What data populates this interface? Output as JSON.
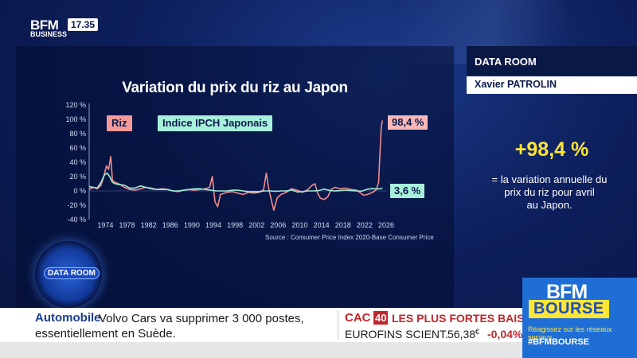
{
  "header": {
    "brand": "BFM",
    "sub_brand": "BUSINESS",
    "time": "17.35"
  },
  "chart_data": {
    "type": "line",
    "title": "Variation du prix du riz au Japon",
    "xlabel": "",
    "ylabel": "",
    "xlim": [
      1971,
      2026
    ],
    "ylim": [
      -40,
      120
    ],
    "x_ticks": [
      1974,
      1978,
      1982,
      1986,
      1990,
      1994,
      1998,
      2002,
      2006,
      2010,
      2014,
      2018,
      2022,
      2026
    ],
    "y_ticks": [
      -40,
      -20,
      0,
      20,
      40,
      60,
      80,
      100,
      120
    ],
    "y_tick_labels": [
      "-40 %",
      "-20 %",
      "0 %",
      "20 %",
      "40 %",
      "60 %",
      "80 %",
      "100 %",
      "120 %"
    ],
    "grid": false,
    "legend": [
      "Riz",
      "Indice IPCH Japonais"
    ],
    "series": [
      {
        "name": "Riz",
        "color": "#f08c8c",
        "end_label": "98,4 %",
        "points": [
          [
            1971,
            2
          ],
          [
            1971.8,
            5
          ],
          [
            1972.5,
            3
          ],
          [
            1973.2,
            8
          ],
          [
            1973.7,
            20
          ],
          [
            1974.2,
            35
          ],
          [
            1974.6,
            30
          ],
          [
            1975,
            48
          ],
          [
            1975.3,
            15
          ],
          [
            1975.8,
            12
          ],
          [
            1976.5,
            10
          ],
          [
            1977.5,
            5
          ],
          [
            1978.5,
            2
          ],
          [
            1979.5,
            1
          ],
          [
            1980.5,
            3
          ],
          [
            1981.5,
            5
          ],
          [
            1982.5,
            4
          ],
          [
            1983.5,
            2
          ],
          [
            1984.5,
            3
          ],
          [
            1985.5,
            2
          ],
          [
            1986.5,
            0
          ],
          [
            1987.5,
            -1
          ],
          [
            1988.5,
            1
          ],
          [
            1989.5,
            2
          ],
          [
            1990.5,
            1
          ],
          [
            1991.5,
            2
          ],
          [
            1992.5,
            3
          ],
          [
            1993.3,
            5
          ],
          [
            1993.8,
            20
          ],
          [
            1994.3,
            -15
          ],
          [
            1994.8,
            -22
          ],
          [
            1995.3,
            -5
          ],
          [
            1996.5,
            -2
          ],
          [
            1997.5,
            -1
          ],
          [
            1998.5,
            -3
          ],
          [
            1999.5,
            -5
          ],
          [
            2000.5,
            -2
          ],
          [
            2001.5,
            -3
          ],
          [
            2002.5,
            -2
          ],
          [
            2003.3,
            2
          ],
          [
            2003.8,
            25
          ],
          [
            2004.2,
            5
          ],
          [
            2004.8,
            -15
          ],
          [
            2005.2,
            -27
          ],
          [
            2005.8,
            -10
          ],
          [
            2006.5,
            -5
          ],
          [
            2007.5,
            -2
          ],
          [
            2008.5,
            3
          ],
          [
            2009.5,
            1
          ],
          [
            2010.5,
            -2
          ],
          [
            2011.5,
            2
          ],
          [
            2012.3,
            8
          ],
          [
            2012.8,
            10
          ],
          [
            2013.3,
            -3
          ],
          [
            2013.8,
            -10
          ],
          [
            2014.5,
            -12
          ],
          [
            2015.2,
            -8
          ],
          [
            2015.8,
            2
          ],
          [
            2016.5,
            5
          ],
          [
            2017.5,
            3
          ],
          [
            2018.5,
            4
          ],
          [
            2019.5,
            2
          ],
          [
            2020.5,
            1
          ],
          [
            2021.3,
            -3
          ],
          [
            2021.8,
            -6
          ],
          [
            2022.5,
            -5
          ],
          [
            2023.5,
            -2
          ],
          [
            2024.2,
            2
          ],
          [
            2024.6,
            12
          ],
          [
            2024.9,
            60
          ],
          [
            2025.1,
            90
          ],
          [
            2025.3,
            98.4
          ]
        ]
      },
      {
        "name": "Indice IPCH Japonais",
        "color": "#9eecd4",
        "end_label": "3,6 %",
        "points": [
          [
            1971,
            6
          ],
          [
            1971.8,
            5
          ],
          [
            1972.5,
            4
          ],
          [
            1973.2,
            12
          ],
          [
            1973.8,
            22
          ],
          [
            1974.3,
            25
          ],
          [
            1974.8,
            20
          ],
          [
            1975.3,
            12
          ],
          [
            1975.8,
            10
          ],
          [
            1976.5,
            9
          ],
          [
            1977.5,
            8
          ],
          [
            1978.5,
            4
          ],
          [
            1979.5,
            4
          ],
          [
            1980.5,
            7
          ],
          [
            1981.5,
            5
          ],
          [
            1982.5,
            3
          ],
          [
            1983.5,
            2
          ],
          [
            1984.5,
            2
          ],
          [
            1985.5,
            2
          ],
          [
            1986.5,
            0
          ],
          [
            1987.5,
            0
          ],
          [
            1988.5,
            1
          ],
          [
            1989.5,
            2
          ],
          [
            1990.5,
            3
          ],
          [
            1991.5,
            3
          ],
          [
            1992.5,
            2
          ],
          [
            1993.5,
            1
          ],
          [
            1994.5,
            0
          ],
          [
            1995.5,
            0
          ],
          [
            1996.5,
            0
          ],
          [
            1997.5,
            1
          ],
          [
            1998.5,
            1
          ],
          [
            1999.5,
            0
          ],
          [
            2000.5,
            -1
          ],
          [
            2001.5,
            -1
          ],
          [
            2002.5,
            -1
          ],
          [
            2003.5,
            0
          ],
          [
            2004.5,
            0
          ],
          [
            2005.5,
            -0.5
          ],
          [
            2006.5,
            0
          ],
          [
            2007.5,
            0
          ],
          [
            2008.5,
            1.5
          ],
          [
            2009.5,
            -1.5
          ],
          [
            2010.5,
            -1
          ],
          [
            2011.5,
            0
          ],
          [
            2012.5,
            0
          ],
          [
            2013.5,
            0.5
          ],
          [
            2014.5,
            2.7
          ],
          [
            2015.5,
            0.8
          ],
          [
            2016.5,
            -0.1
          ],
          [
            2017.5,
            0.5
          ],
          [
            2018.5,
            1
          ],
          [
            2019.5,
            0.5
          ],
          [
            2020.5,
            0
          ],
          [
            2021.5,
            -0.2
          ],
          [
            2022.5,
            2.5
          ],
          [
            2023.5,
            3.2
          ],
          [
            2024.5,
            2.8
          ],
          [
            2025.3,
            3.6
          ]
        ]
      }
    ],
    "source": "Source : Consumer Price Index 2020-Base Consumer Price"
  },
  "data_room": {
    "title": "DATA ROOM",
    "author": "Xavier PATROLIN",
    "value": "+98,4 %",
    "description_lines": [
      "= la variation annuelle du",
      "prix du riz pour avril",
      "au Japon."
    ],
    "badge_label": "DATA ROOM"
  },
  "ticker": {
    "category": "Automobile",
    "headline_line1": "Volvo Cars va supprimer 3 000 postes,",
    "headline_line2": "essentiellement en Suède.",
    "cac_label": "CAC",
    "cac_number": "40",
    "cac_title": "LES PLUS FORTES BAISSES",
    "stock_name": "EUROFINS SCIENT.",
    "stock_price": "56,38",
    "stock_currency": "€",
    "stock_change": "-0,04%"
  },
  "bourse": {
    "brand": "BFM",
    "word": "BOURSE",
    "social_text": "Réagissez sur les réseaux sociaux",
    "hashtag": "#BFMBOURSE"
  },
  "colors": {
    "background": "#0b1a4a",
    "value_yellow": "#ffe535",
    "bourse_blue": "#1f6ed6",
    "negative_red": "#c0272d"
  }
}
